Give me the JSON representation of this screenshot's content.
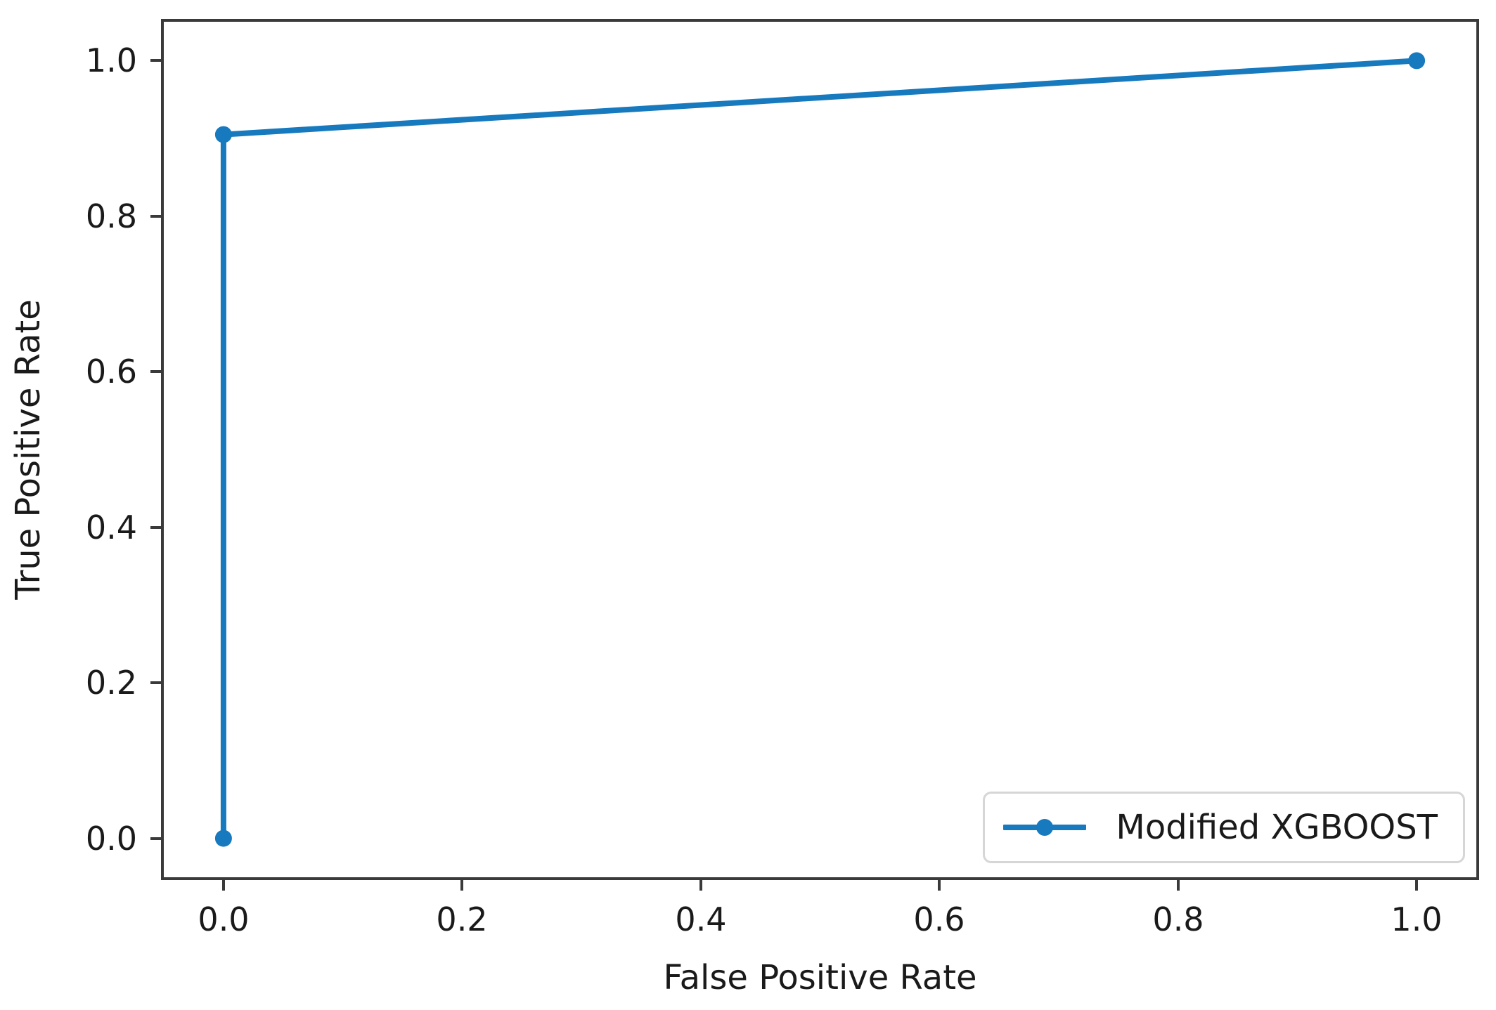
{
  "chart_data": {
    "type": "line",
    "xlabel": "False Positive Rate",
    "ylabel": "True Positive Rate",
    "xlim": [
      -0.05,
      1.05
    ],
    "ylim": [
      -0.05,
      1.05
    ],
    "x_ticks": [
      0.0,
      0.2,
      0.4,
      0.6,
      0.8,
      1.0
    ],
    "y_ticks": [
      0.0,
      0.2,
      0.4,
      0.6,
      0.8,
      1.0
    ],
    "x_tick_labels": [
      "0.0",
      "0.2",
      "0.4",
      "0.6",
      "0.8",
      "1.0"
    ],
    "y_tick_labels": [
      "0.0",
      "0.2",
      "0.4",
      "0.6",
      "0.8",
      "1.0"
    ],
    "grid": false,
    "legend": {
      "position": "lower right",
      "entries": [
        {
          "label": "Modified XGBOOST",
          "color": "#1779be",
          "marker": "circle"
        }
      ]
    },
    "series": [
      {
        "name": "Modified XGBOOST",
        "x": [
          0.0,
          0.0,
          1.0
        ],
        "y": [
          0.0,
          0.905,
          1.0
        ],
        "color": "#1779be",
        "marker": "circle",
        "line_width": 8,
        "marker_radius": 12
      }
    ],
    "colors": {
      "line": "#1779be",
      "spine": "#3a3a3a",
      "text": "#1a1a1a",
      "legend_border": "#d6d6d6",
      "background": "#ffffff"
    }
  }
}
